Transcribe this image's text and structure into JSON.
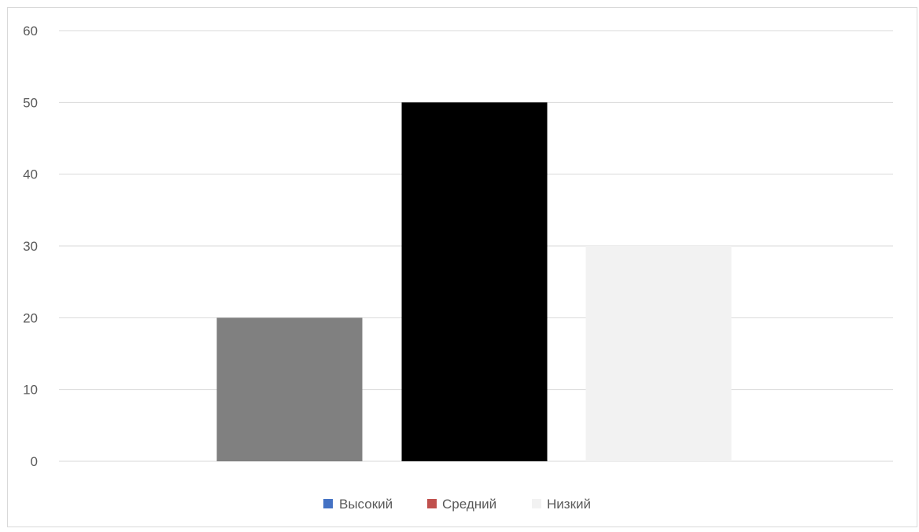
{
  "chart_data": {
    "type": "bar",
    "title": "",
    "xlabel": "",
    "ylabel": "",
    "ylim": [
      0,
      60
    ],
    "yticks": [
      0,
      10,
      20,
      30,
      40,
      50,
      60
    ],
    "grid": true,
    "legend_position": "bottom",
    "series": [
      {
        "name": "Высокий",
        "value": 20,
        "color": "#808080",
        "legend_color": "#4472c4"
      },
      {
        "name": "Средний",
        "value": 50,
        "color": "#000000",
        "legend_color": "#c0504d"
      },
      {
        "name": "Низкий",
        "value": 30,
        "color": "#f2f2f2",
        "legend_color": "#f2f2f2"
      }
    ]
  }
}
